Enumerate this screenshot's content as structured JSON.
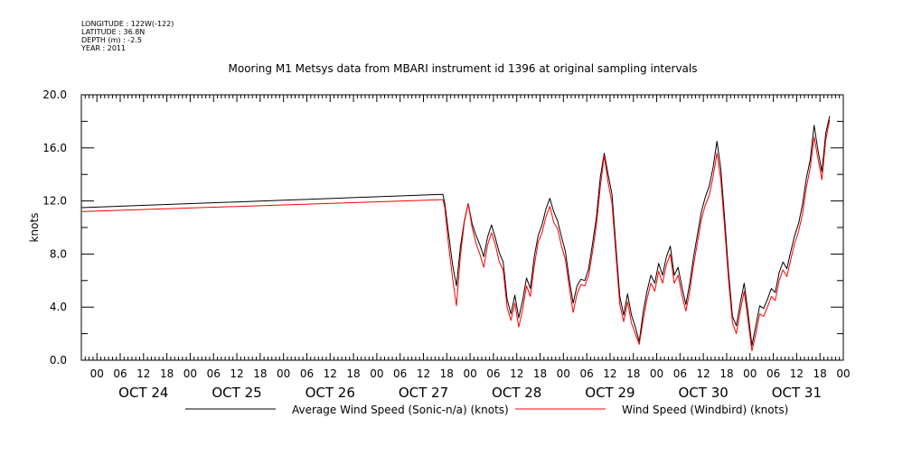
{
  "metadata": {
    "longitude": "LONGITUDE : 122W(-122)",
    "latitude": "LATITUDE : 36.8N",
    "depth": "DEPTH (m) : -2.5",
    "year": "YEAR : 2011"
  },
  "chart_data": {
    "type": "line",
    "title": "Mooring M1 Metsys data from MBARI instrument id 1396 at original sampling intervals",
    "ylabel": "knots",
    "xlabel": "",
    "ylim": [
      0,
      20
    ],
    "yticks": [
      "0.0",
      "4.0",
      "8.0",
      "12.0",
      "16.0",
      "20.0"
    ],
    "xlim_hours": [
      -4,
      192
    ],
    "hour_ticks": [
      "00",
      "06",
      "12",
      "18",
      "00",
      "06",
      "12",
      "18",
      "00",
      "06",
      "12",
      "18",
      "00",
      "06",
      "12",
      "18",
      "00",
      "06",
      "12",
      "18",
      "00",
      "06",
      "12",
      "18",
      "00",
      "06",
      "12",
      "18",
      "00",
      "06",
      "12",
      "18",
      "00"
    ],
    "day_labels": [
      "OCT 24",
      "OCT 25",
      "OCT 26",
      "OCT 27",
      "OCT 28",
      "OCT 29",
      "OCT 30",
      "OCT 31"
    ],
    "grid": false,
    "legend_position": "bottom",
    "series": [
      {
        "name": "Average Wind Speed (Sonic-n/a) (knots)",
        "color": "#000000",
        "points": [
          [
            -4,
            11.5
          ],
          [
            89,
            12.5
          ],
          [
            89.5,
            11.8
          ],
          [
            90.5,
            9.5
          ],
          [
            91.5,
            7.2
          ],
          [
            92.5,
            5.6
          ],
          [
            93.5,
            8.5
          ],
          [
            94.5,
            10.5
          ],
          [
            95.5,
            11.8
          ],
          [
            96.5,
            10.3
          ],
          [
            97.5,
            9.4
          ],
          [
            98.5,
            8.7
          ],
          [
            99.5,
            7.8
          ],
          [
            100.5,
            9.3
          ],
          [
            101.5,
            10.2
          ],
          [
            102.5,
            9.2
          ],
          [
            103.5,
            8.1
          ],
          [
            104.5,
            7.4
          ],
          [
            105.5,
            4.6
          ],
          [
            106.5,
            3.5
          ],
          [
            107.5,
            4.9
          ],
          [
            108.5,
            3.2
          ],
          [
            109.5,
            4.5
          ],
          [
            110.5,
            6.2
          ],
          [
            111.5,
            5.4
          ],
          [
            112.5,
            7.8
          ],
          [
            113.5,
            9.4
          ],
          [
            114.5,
            10.2
          ],
          [
            115.5,
            11.4
          ],
          [
            116.5,
            12.2
          ],
          [
            117.5,
            11.2
          ],
          [
            118.5,
            10.5
          ],
          [
            119.5,
            9.3
          ],
          [
            120.5,
            8.2
          ],
          [
            121.5,
            6.1
          ],
          [
            122.5,
            4.3
          ],
          [
            123.5,
            5.6
          ],
          [
            124.5,
            6.1
          ],
          [
            125.5,
            6.0
          ],
          [
            126.5,
            6.9
          ],
          [
            127.5,
            8.8
          ],
          [
            128.5,
            10.8
          ],
          [
            129.5,
            13.8
          ],
          [
            130.5,
            15.6
          ],
          [
            131.5,
            14.0
          ],
          [
            132.5,
            12.5
          ],
          [
            133.5,
            8.6
          ],
          [
            134.5,
            4.8
          ],
          [
            135.5,
            3.4
          ],
          [
            136.5,
            5.0
          ],
          [
            137.5,
            3.4
          ],
          [
            138.5,
            2.5
          ],
          [
            139.5,
            1.4
          ],
          [
            140.5,
            3.6
          ],
          [
            141.5,
            5.2
          ],
          [
            142.5,
            6.4
          ],
          [
            143.5,
            5.8
          ],
          [
            144.5,
            7.3
          ],
          [
            145.5,
            6.4
          ],
          [
            146.5,
            7.8
          ],
          [
            147.5,
            8.6
          ],
          [
            148.5,
            6.4
          ],
          [
            149.5,
            7.0
          ],
          [
            150.5,
            5.5
          ],
          [
            151.5,
            4.2
          ],
          [
            152.5,
            5.8
          ],
          [
            153.5,
            7.8
          ],
          [
            154.5,
            9.5
          ],
          [
            155.5,
            11.2
          ],
          [
            156.5,
            12.3
          ],
          [
            157.5,
            13.1
          ],
          [
            158.5,
            14.5
          ],
          [
            159.5,
            16.5
          ],
          [
            160.5,
            14.4
          ],
          [
            161.5,
            10.6
          ],
          [
            162.5,
            6.6
          ],
          [
            163.5,
            3.3
          ],
          [
            164.5,
            2.6
          ],
          [
            165.5,
            4.3
          ],
          [
            166.5,
            5.8
          ],
          [
            167.5,
            3.6
          ],
          [
            168.5,
            1.1
          ],
          [
            169.5,
            2.6
          ],
          [
            170.5,
            4.1
          ],
          [
            171.5,
            3.9
          ],
          [
            172.5,
            4.6
          ],
          [
            173.5,
            5.4
          ],
          [
            174.5,
            5.1
          ],
          [
            175.5,
            6.6
          ],
          [
            176.5,
            7.4
          ],
          [
            177.5,
            6.9
          ],
          [
            178.5,
            8.2
          ],
          [
            179.5,
            9.4
          ],
          [
            180.5,
            10.3
          ],
          [
            181.5,
            11.7
          ],
          [
            182.5,
            13.7
          ],
          [
            183.5,
            15.1
          ],
          [
            184.5,
            17.7
          ],
          [
            185.5,
            15.8
          ],
          [
            186.5,
            14.2
          ],
          [
            187.5,
            17.1
          ],
          [
            188.5,
            18.4
          ]
        ]
      },
      {
        "name": "Wind Speed (Windbird) (knots)",
        "color": "#ff0000",
        "points": [
          [
            -4,
            11.2
          ],
          [
            89,
            12.1
          ],
          [
            89.5,
            11.5
          ],
          [
            90.5,
            8.6
          ],
          [
            91.5,
            6.2
          ],
          [
            92.5,
            4.1
          ],
          [
            93.5,
            7.8
          ],
          [
            94.5,
            10.4
          ],
          [
            95.5,
            11.8
          ],
          [
            96.5,
            10.0
          ],
          [
            97.5,
            8.8
          ],
          [
            98.5,
            8.0
          ],
          [
            99.5,
            7.0
          ],
          [
            100.5,
            8.7
          ],
          [
            101.5,
            9.6
          ],
          [
            102.5,
            8.7
          ],
          [
            103.5,
            7.4
          ],
          [
            104.5,
            6.8
          ],
          [
            105.5,
            4.0
          ],
          [
            106.5,
            3.0
          ],
          [
            107.5,
            4.3
          ],
          [
            108.5,
            2.5
          ],
          [
            109.5,
            3.8
          ],
          [
            110.5,
            5.6
          ],
          [
            111.5,
            4.8
          ],
          [
            112.5,
            7.1
          ],
          [
            113.5,
            8.9
          ],
          [
            114.5,
            9.6
          ],
          [
            115.5,
            10.8
          ],
          [
            116.5,
            11.6
          ],
          [
            117.5,
            10.4
          ],
          [
            118.5,
            9.9
          ],
          [
            119.5,
            8.6
          ],
          [
            120.5,
            7.6
          ],
          [
            121.5,
            5.5
          ],
          [
            122.5,
            3.6
          ],
          [
            123.5,
            5.0
          ],
          [
            124.5,
            5.7
          ],
          [
            125.5,
            5.6
          ],
          [
            126.5,
            6.4
          ],
          [
            127.5,
            8.2
          ],
          [
            128.5,
            10.2
          ],
          [
            129.5,
            13.1
          ],
          [
            130.5,
            15.4
          ],
          [
            131.5,
            13.4
          ],
          [
            132.5,
            11.8
          ],
          [
            133.5,
            8.0
          ],
          [
            134.5,
            4.2
          ],
          [
            135.5,
            2.9
          ],
          [
            136.5,
            4.4
          ],
          [
            137.5,
            2.8
          ],
          [
            138.5,
            2.0
          ],
          [
            139.5,
            1.2
          ],
          [
            140.5,
            3.0
          ],
          [
            141.5,
            4.6
          ],
          [
            142.5,
            5.8
          ],
          [
            143.5,
            5.2
          ],
          [
            144.5,
            6.7
          ],
          [
            145.5,
            5.8
          ],
          [
            146.5,
            7.2
          ],
          [
            147.5,
            8.0
          ],
          [
            148.5,
            5.8
          ],
          [
            149.5,
            6.4
          ],
          [
            150.5,
            4.9
          ],
          [
            151.5,
            3.7
          ],
          [
            152.5,
            5.2
          ],
          [
            153.5,
            7.2
          ],
          [
            154.5,
            8.9
          ],
          [
            155.5,
            10.6
          ],
          [
            156.5,
            11.7
          ],
          [
            157.5,
            12.4
          ],
          [
            158.5,
            13.8
          ],
          [
            159.5,
            15.6
          ],
          [
            160.5,
            13.6
          ],
          [
            161.5,
            9.9
          ],
          [
            162.5,
            6.0
          ],
          [
            163.5,
            2.8
          ],
          [
            164.5,
            2.0
          ],
          [
            165.5,
            3.7
          ],
          [
            166.5,
            5.2
          ],
          [
            167.5,
            3.0
          ],
          [
            168.5,
            0.7
          ],
          [
            169.5,
            2.0
          ],
          [
            170.5,
            3.5
          ],
          [
            171.5,
            3.3
          ],
          [
            172.5,
            4.0
          ],
          [
            173.5,
            4.8
          ],
          [
            174.5,
            4.5
          ],
          [
            175.5,
            6.0
          ],
          [
            176.5,
            6.8
          ],
          [
            177.5,
            6.3
          ],
          [
            178.5,
            7.6
          ],
          [
            179.5,
            8.8
          ],
          [
            180.5,
            9.7
          ],
          [
            181.5,
            11.0
          ],
          [
            182.5,
            13.0
          ],
          [
            183.5,
            14.5
          ],
          [
            184.5,
            16.8
          ],
          [
            185.5,
            15.2
          ],
          [
            186.5,
            13.6
          ],
          [
            187.5,
            16.6
          ],
          [
            188.5,
            18.1
          ]
        ]
      }
    ]
  }
}
